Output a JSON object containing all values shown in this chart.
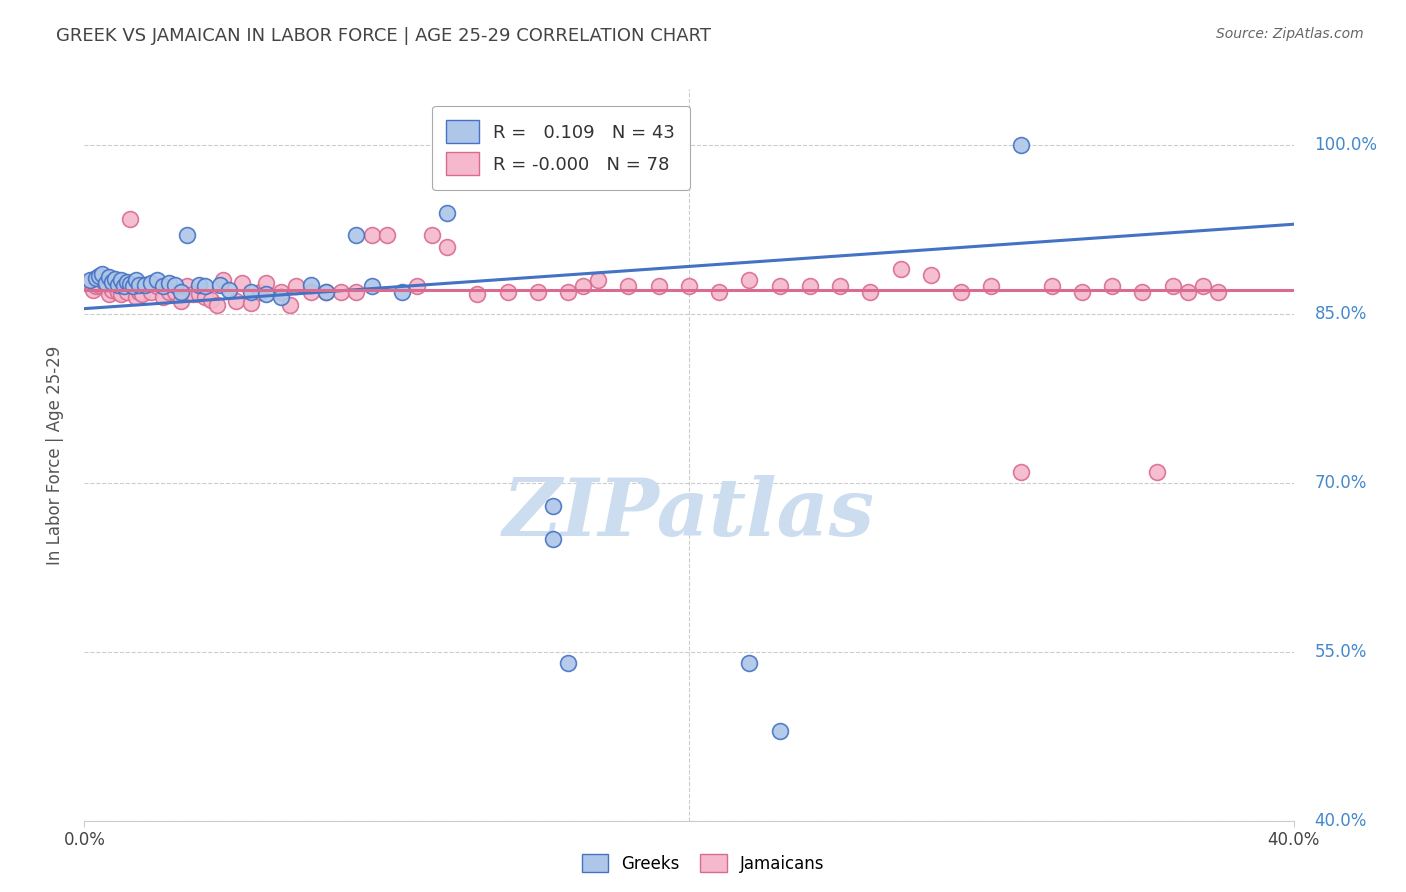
{
  "title": "GREEK VS JAMAICAN IN LABOR FORCE | AGE 25-29 CORRELATION CHART",
  "source": "Source: ZipAtlas.com",
  "ylabel": "In Labor Force | Age 25-29",
  "watermark": "ZIPatlas",
  "xlim": [
    0.0,
    0.4
  ],
  "ylim": [
    0.4,
    1.05
  ],
  "ytick_positions": [
    0.4,
    0.55,
    0.7,
    0.85,
    1.0
  ],
  "legend_greek_R": "0.109",
  "legend_greek_N": "43",
  "legend_jamaican_R": "-0.000",
  "legend_jamaican_N": "78",
  "greek_color": "#aec6e8",
  "jamaican_color": "#f5b8cc",
  "greek_line_color": "#4472c4",
  "jamaican_line_color": "#d96b8f",
  "greek_scatter_x": [
    0.002,
    0.004,
    0.005,
    0.006,
    0.007,
    0.008,
    0.009,
    0.01,
    0.011,
    0.012,
    0.013,
    0.014,
    0.015,
    0.016,
    0.017,
    0.018,
    0.02,
    0.022,
    0.024,
    0.026,
    0.028,
    0.03,
    0.032,
    0.034,
    0.038,
    0.04,
    0.045,
    0.048,
    0.055,
    0.06,
    0.065,
    0.075,
    0.08,
    0.09,
    0.095,
    0.105,
    0.12,
    0.155,
    0.16,
    0.22,
    0.23,
    0.31,
    0.155
  ],
  "greek_scatter_y": [
    0.88,
    0.882,
    0.884,
    0.886,
    0.878,
    0.883,
    0.879,
    0.881,
    0.876,
    0.88,
    0.875,
    0.879,
    0.877,
    0.875,
    0.88,
    0.876,
    0.876,
    0.878,
    0.88,
    0.875,
    0.878,
    0.876,
    0.87,
    0.92,
    0.876,
    0.875,
    0.876,
    0.872,
    0.87,
    0.868,
    0.865,
    0.876,
    0.87,
    0.92,
    0.875,
    0.87,
    0.94,
    0.65,
    0.54,
    0.54,
    0.48,
    1.0,
    0.68
  ],
  "jamaican_scatter_x": [
    0.002,
    0.003,
    0.004,
    0.005,
    0.006,
    0.007,
    0.008,
    0.009,
    0.01,
    0.011,
    0.012,
    0.013,
    0.014,
    0.015,
    0.016,
    0.017,
    0.018,
    0.019,
    0.02,
    0.022,
    0.024,
    0.026,
    0.028,
    0.03,
    0.032,
    0.034,
    0.036,
    0.038,
    0.04,
    0.042,
    0.044,
    0.046,
    0.05,
    0.052,
    0.055,
    0.058,
    0.06,
    0.065,
    0.068,
    0.07,
    0.075,
    0.08,
    0.085,
    0.09,
    0.095,
    0.1,
    0.11,
    0.115,
    0.12,
    0.13,
    0.14,
    0.15,
    0.16,
    0.165,
    0.17,
    0.18,
    0.19,
    0.2,
    0.21,
    0.22,
    0.23,
    0.24,
    0.25,
    0.26,
    0.27,
    0.28,
    0.29,
    0.3,
    0.31,
    0.32,
    0.33,
    0.34,
    0.35,
    0.355,
    0.36,
    0.365,
    0.37,
    0.375
  ],
  "jamaican_scatter_y": [
    0.878,
    0.872,
    0.875,
    0.876,
    0.88,
    0.875,
    0.868,
    0.872,
    0.875,
    0.87,
    0.868,
    0.876,
    0.87,
    0.935,
    0.875,
    0.865,
    0.87,
    0.868,
    0.876,
    0.87,
    0.875,
    0.865,
    0.87,
    0.87,
    0.862,
    0.875,
    0.868,
    0.868,
    0.865,
    0.863,
    0.858,
    0.88,
    0.862,
    0.878,
    0.86,
    0.87,
    0.878,
    0.87,
    0.858,
    0.875,
    0.87,
    0.87,
    0.87,
    0.87,
    0.92,
    0.92,
    0.875,
    0.92,
    0.91,
    0.868,
    0.87,
    0.87,
    0.87,
    0.875,
    0.88,
    0.875,
    0.875,
    0.875,
    0.87,
    0.88,
    0.875,
    0.875,
    0.875,
    0.87,
    0.89,
    0.885,
    0.87,
    0.875,
    0.71,
    0.875,
    0.87,
    0.875,
    0.87,
    0.71,
    0.875,
    0.87,
    0.875,
    0.87
  ],
  "greek_trend_x": [
    0.0,
    0.4
  ],
  "greek_trend_y": [
    0.855,
    0.93
  ],
  "jamaican_trend_x": [
    0.0,
    0.4
  ],
  "jamaican_trend_y": [
    0.872,
    0.872
  ],
  "background_color": "#ffffff",
  "grid_color": "#cccccc",
  "title_color": "#444444",
  "right_axis_color": "#4488cc",
  "watermark_color": "#ccddf0"
}
